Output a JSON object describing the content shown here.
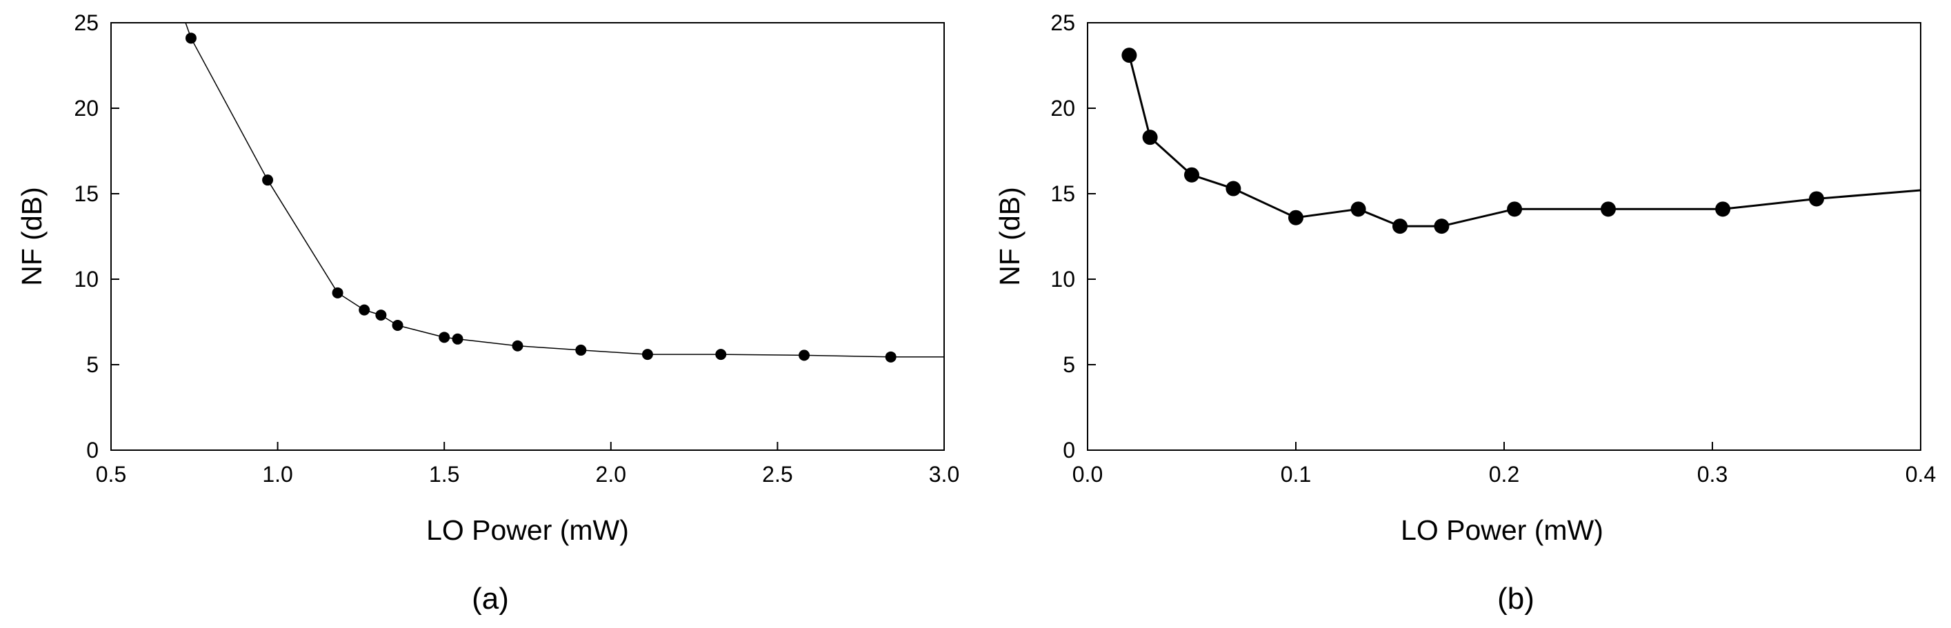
{
  "chart_data": [
    {
      "type": "line",
      "panel_label": "(a)",
      "xlabel": "LO Power (mW)",
      "ylabel": "NF (dB)",
      "xlim": [
        0.5,
        3.0
      ],
      "ylim": [
        0,
        25
      ],
      "x_ticks": [
        "0.5",
        "1.0",
        "1.5",
        "2.0",
        "2.5",
        "3.0"
      ],
      "y_ticks": [
        "0",
        "5",
        "10",
        "15",
        "20",
        "25"
      ],
      "grid": false,
      "line_color": "#000000",
      "marker_color": "#000000",
      "curve": {
        "x": [
          0.72,
          0.74,
          0.97,
          1.18,
          1.26,
          1.31,
          1.36,
          1.5,
          1.54,
          1.72,
          1.91,
          2.11,
          2.33,
          2.58,
          2.84,
          3.0
        ],
        "y": [
          25.2,
          24.1,
          15.8,
          9.2,
          8.2,
          7.9,
          7.3,
          6.6,
          6.5,
          6.1,
          5.85,
          5.6,
          5.6,
          5.55,
          5.45,
          5.45
        ]
      },
      "series": [
        {
          "x": [
            0.74,
            0.97,
            1.18,
            1.26,
            1.31,
            1.36,
            1.5,
            1.54,
            1.72,
            1.91,
            2.11,
            2.33,
            2.58,
            2.84
          ],
          "y": [
            24.1,
            15.8,
            9.2,
            8.2,
            7.9,
            7.3,
            6.6,
            6.5,
            6.1,
            5.85,
            5.6,
            5.6,
            5.55,
            5.45
          ]
        }
      ]
    },
    {
      "type": "line",
      "panel_label": "(b)",
      "xlabel": "LO Power (mW)",
      "ylabel": "NF (dB)",
      "xlim": [
        0.0,
        0.4
      ],
      "ylim": [
        0,
        25
      ],
      "x_ticks": [
        "0.0",
        "0.1",
        "0.2",
        "0.3",
        "0.4"
      ],
      "y_ticks": [
        "0",
        "5",
        "10",
        "15",
        "20",
        "25"
      ],
      "grid": false,
      "line_color": "#000000",
      "marker_color": "#000000",
      "curve": {
        "x": [
          0.02,
          0.03,
          0.05,
          0.07,
          0.1,
          0.13,
          0.15,
          0.17,
          0.205,
          0.25,
          0.305,
          0.35,
          0.4
        ],
        "y": [
          23.1,
          18.3,
          16.1,
          15.3,
          13.6,
          14.1,
          13.1,
          13.1,
          14.1,
          14.1,
          14.1,
          14.7,
          15.2
        ]
      },
      "series": [
        {
          "x": [
            0.02,
            0.03,
            0.05,
            0.07,
            0.1,
            0.13,
            0.15,
            0.17,
            0.205,
            0.25,
            0.305,
            0.35
          ],
          "y": [
            23.1,
            18.3,
            16.1,
            15.3,
            13.6,
            14.1,
            13.1,
            13.1,
            14.1,
            14.1,
            14.1,
            14.7
          ]
        }
      ]
    }
  ]
}
